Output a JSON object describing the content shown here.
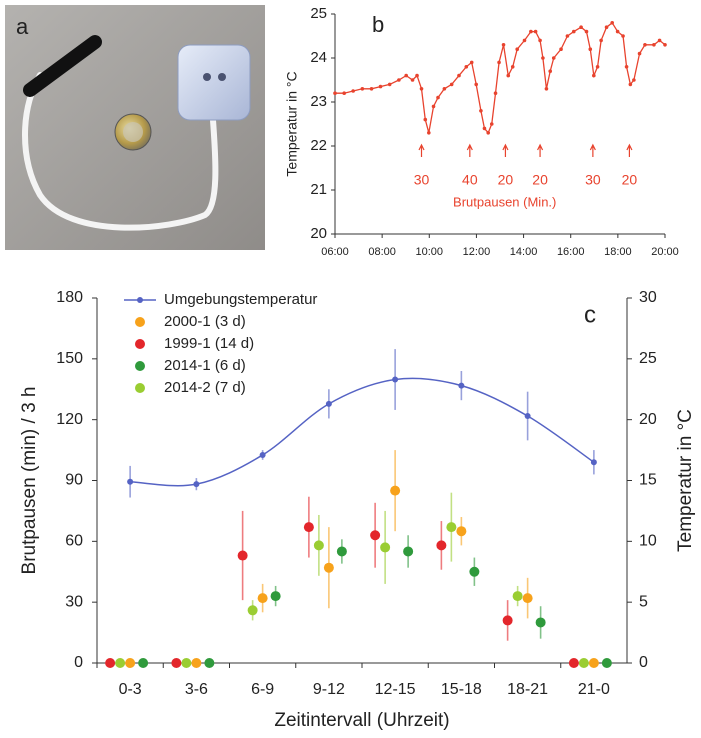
{
  "photo": {
    "label": "a"
  },
  "chart_data": [
    {
      "type": "line",
      "label": "b",
      "ylabel": "Temperatur in °C",
      "color": "#e8432e",
      "x": [
        6.0,
        6.39,
        6.77,
        7.16,
        7.55,
        7.93,
        8.32,
        8.71,
        9.02,
        9.29,
        9.48,
        9.67,
        9.83,
        9.98,
        10.18,
        10.37,
        10.64,
        10.95,
        11.26,
        11.57,
        11.8,
        11.99,
        12.19,
        12.34,
        12.5,
        12.65,
        12.81,
        12.96,
        13.15,
        13.35,
        13.54,
        13.73,
        14.04,
        14.31,
        14.51,
        14.7,
        14.82,
        14.97,
        15.13,
        15.28,
        15.59,
        15.86,
        16.13,
        16.44,
        16.67,
        16.83,
        16.98,
        17.14,
        17.29,
        17.52,
        17.76,
        17.99,
        18.22,
        18.37,
        18.53,
        18.68,
        18.92,
        19.15,
        19.53,
        19.77,
        20.0
      ],
      "values": [
        23.2,
        23.2,
        23.25,
        23.3,
        23.3,
        23.35,
        23.4,
        23.5,
        23.6,
        23.5,
        23.6,
        23.3,
        22.6,
        22.3,
        22.9,
        23.1,
        23.3,
        23.4,
        23.6,
        23.8,
        23.9,
        23.4,
        22.8,
        22.4,
        22.3,
        22.5,
        23.2,
        23.9,
        24.3,
        23.6,
        23.8,
        24.2,
        24.4,
        24.6,
        24.6,
        24.4,
        24.0,
        23.3,
        23.7,
        24.0,
        24.2,
        24.5,
        24.6,
        24.7,
        24.6,
        24.2,
        23.6,
        23.8,
        24.4,
        24.7,
        24.8,
        24.6,
        24.5,
        23.8,
        23.4,
        23.5,
        24.1,
        24.3,
        24.3,
        24.4,
        24.3
      ],
      "xlim": [
        6,
        20
      ],
      "xticks": [
        {
          "value": 6,
          "label": "06:00"
        },
        {
          "value": 8,
          "label": "08:00"
        },
        {
          "value": 10,
          "label": "10:00"
        },
        {
          "value": 12,
          "label": "12:00"
        },
        {
          "value": 14,
          "label": "14:00"
        },
        {
          "value": 16,
          "label": "16:00"
        },
        {
          "value": 18,
          "label": "18:00"
        },
        {
          "value": 20,
          "label": "20:00"
        }
      ],
      "ylim": [
        20,
        25
      ],
      "yticks": [
        20,
        21,
        22,
        23,
        24,
        25
      ],
      "annotations": [
        {
          "x": 9.67,
          "text": "30"
        },
        {
          "x": 11.72,
          "text": "40"
        },
        {
          "x": 13.23,
          "text": "20"
        },
        {
          "x": 14.7,
          "text": "20"
        },
        {
          "x": 16.94,
          "text": "30"
        },
        {
          "x": 18.49,
          "text": "20"
        }
      ],
      "annotation_title": "Brutpausen (Min.)"
    },
    {
      "type": "errorbar",
      "label": "c",
      "xlabel": "Zeitintervall (Uhrzeit)",
      "ylabel": "Brutpausen (min) / 3 h",
      "y2label": "Temperatur in °C",
      "categories": [
        "0-3",
        "3-6",
        "6-9",
        "9-12",
        "12-15",
        "15-18",
        "18-21",
        "21-0"
      ],
      "series": [
        {
          "name": "Umgebungstemperatur",
          "color": "#5563c4",
          "axis": "y2",
          "values": [
            14.9,
            14.7,
            17.1,
            21.3,
            23.3,
            22.8,
            20.3,
            16.5
          ],
          "errors": [
            1.3,
            0.5,
            0.4,
            1.2,
            2.5,
            1.2,
            2.0,
            1.0
          ]
        },
        {
          "name": "2000-1 (3 d)",
          "color": "#f7a21b",
          "values": [
            0,
            0,
            32,
            47,
            85,
            65,
            32,
            0
          ],
          "errors": [
            0,
            0,
            7,
            20,
            20,
            7,
            10,
            0
          ]
        },
        {
          "name": "1999-1 (14 d)",
          "color": "#e3262b",
          "values": [
            0,
            0,
            53,
            67,
            63,
            58,
            21,
            0
          ],
          "errors": [
            0,
            0,
            22,
            15,
            16,
            12,
            10,
            0
          ]
        },
        {
          "name": "2014-1 (6 d)",
          "color": "#2f9a3c",
          "values": [
            0,
            0,
            33,
            55,
            55,
            45,
            20,
            0
          ],
          "errors": [
            0,
            0,
            5,
            6,
            8,
            7,
            8,
            0
          ]
        },
        {
          "name": "2014-2 (7 d)",
          "color": "#9acd32",
          "values": [
            0,
            0,
            26,
            58,
            57,
            67,
            33,
            0
          ],
          "errors": [
            0,
            0,
            5,
            15,
            18,
            17,
            5,
            0
          ]
        }
      ],
      "ylim": [
        0,
        180
      ],
      "yticks": [
        0,
        30,
        60,
        90,
        120,
        150,
        180
      ],
      "y2lim": [
        0,
        30
      ],
      "y2ticks": [
        0,
        5,
        10,
        15,
        20,
        25,
        30
      ],
      "legend": "upper left"
    }
  ]
}
